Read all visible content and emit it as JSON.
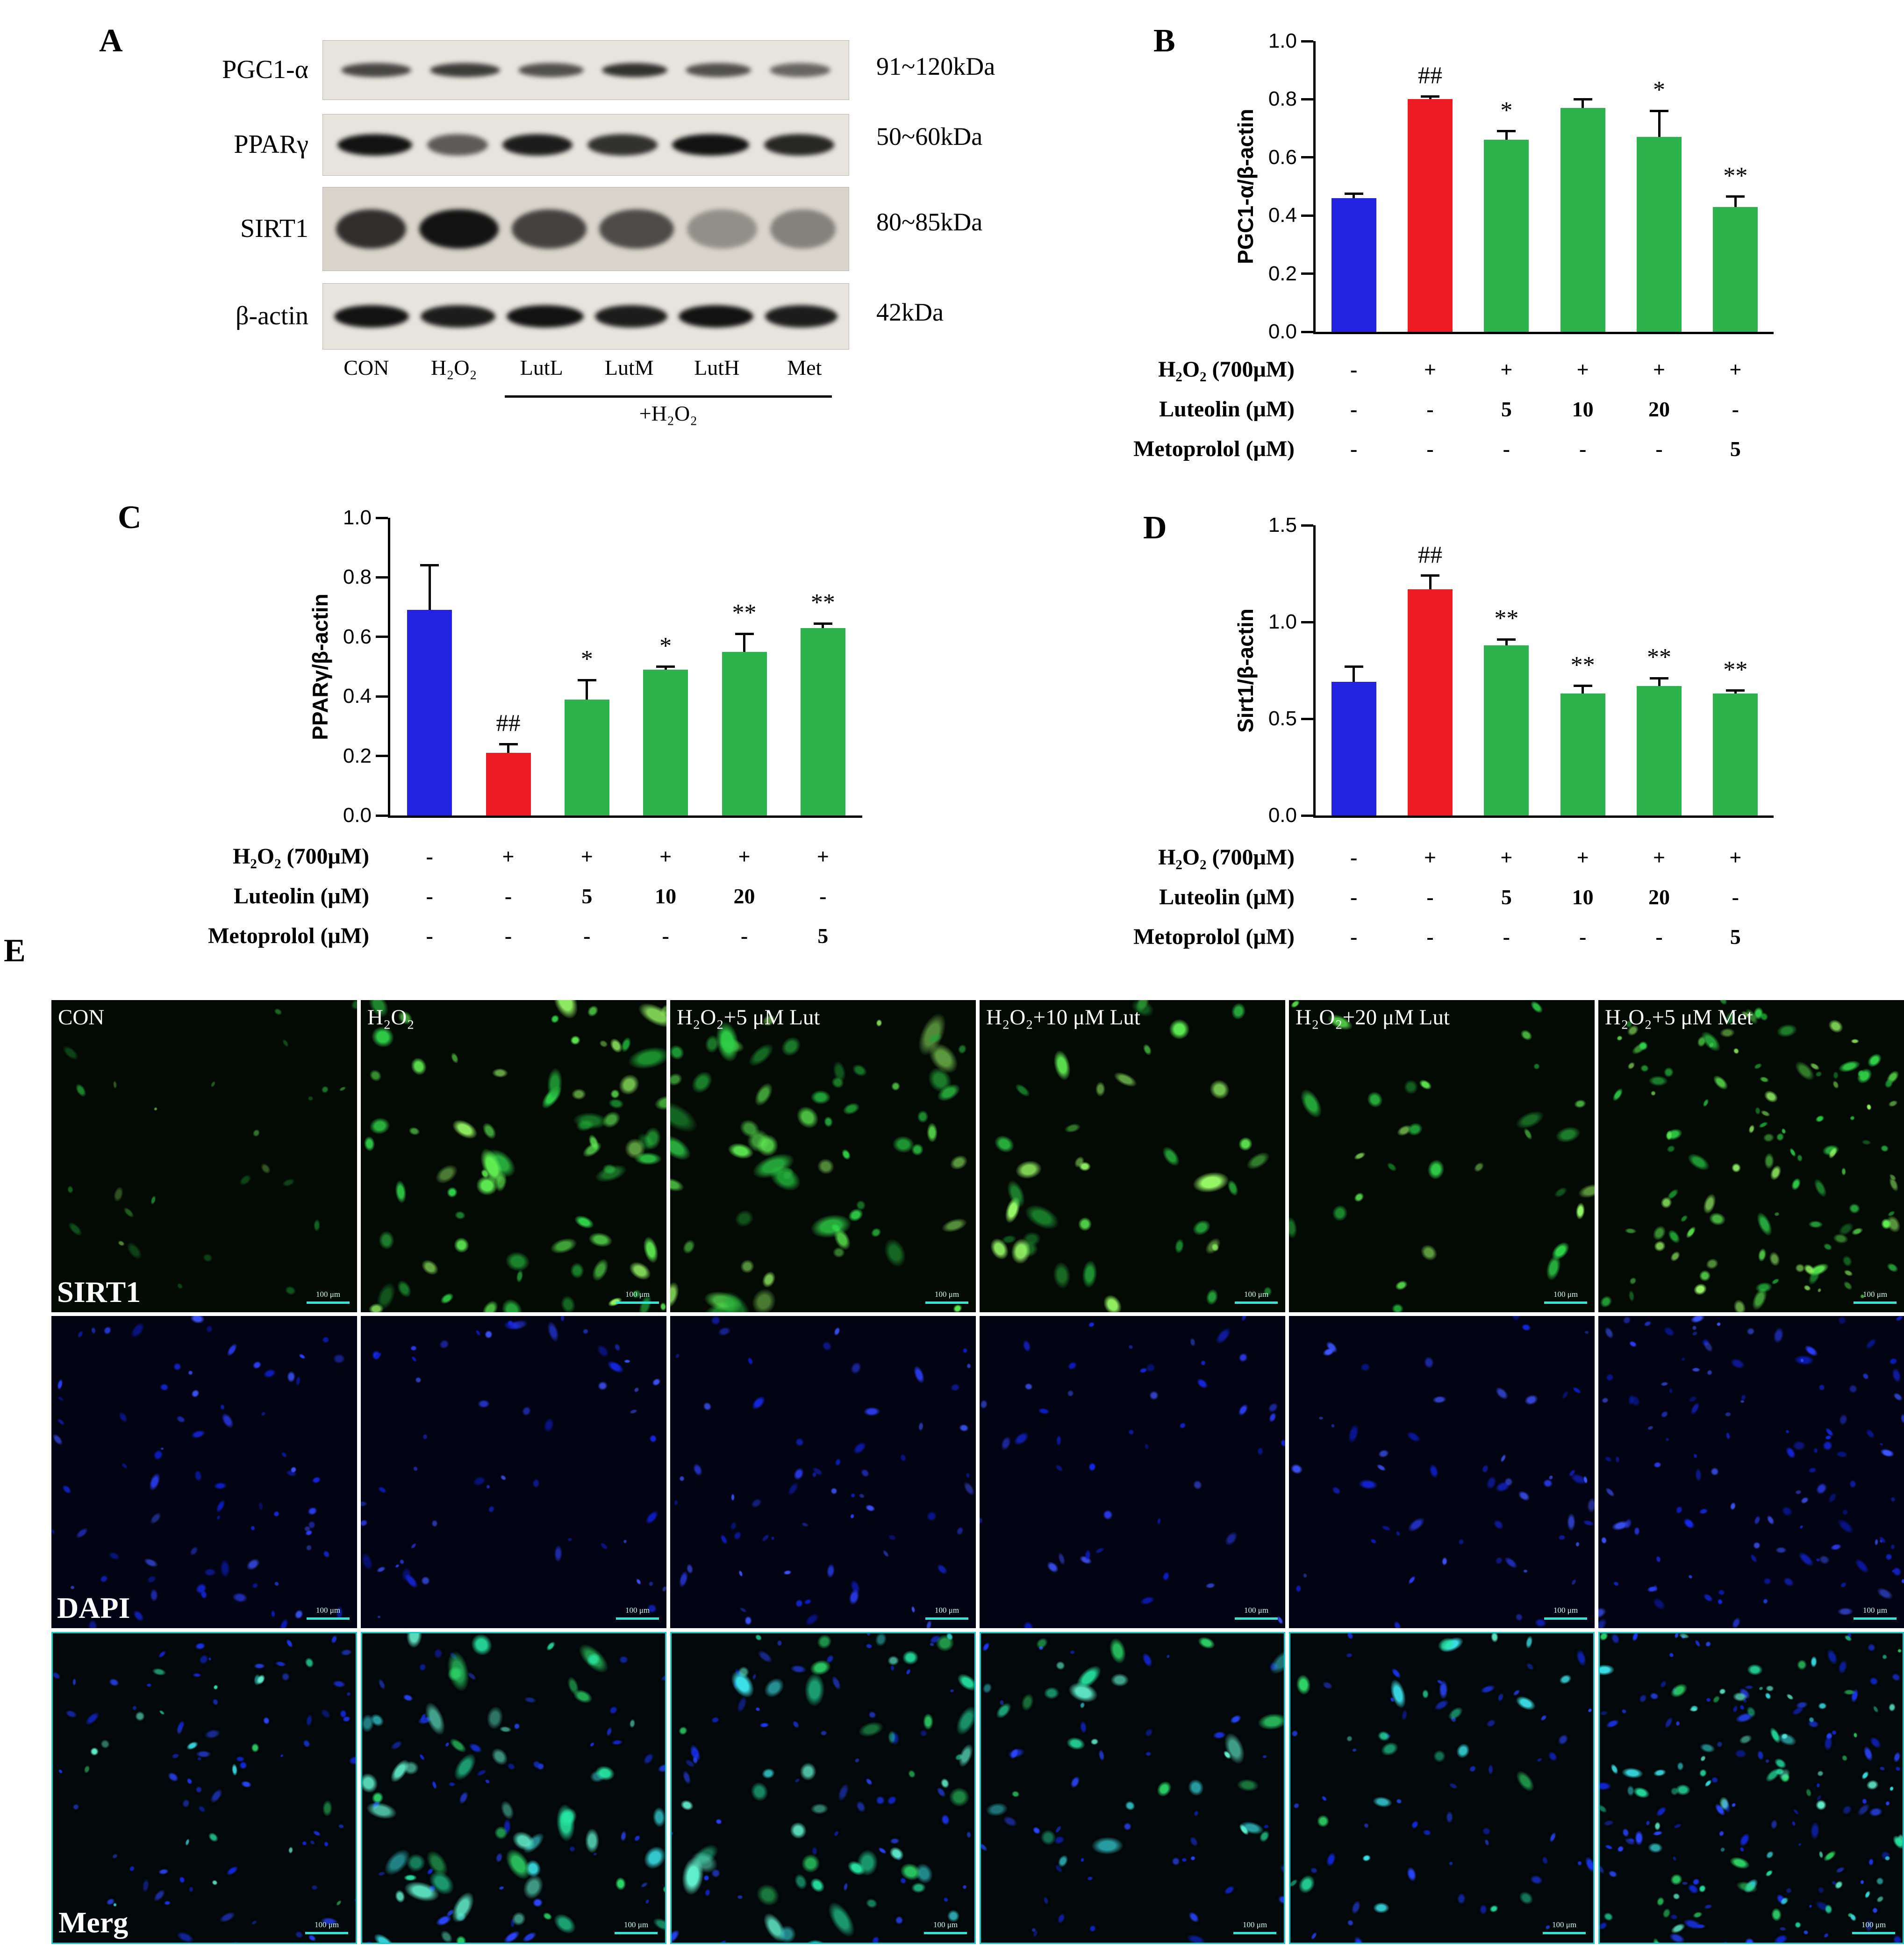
{
  "figure": {
    "panel_labels": {
      "a": "A",
      "b": "B",
      "c": "C",
      "d": "D",
      "e": "E"
    }
  },
  "panel_a": {
    "blots": [
      {
        "protein": "PGC1-α",
        "kda": "91~120kDa"
      },
      {
        "protein": "PPARγ",
        "kda": "50~60kDa"
      },
      {
        "protein": "SIRT1",
        "kda": "80~85kDa"
      },
      {
        "protein": "β-actin",
        "kda": "42kDa"
      }
    ],
    "lanes": [
      "CON",
      "H₂O₂",
      "LutL",
      "LutM",
      "LutH",
      "Met"
    ],
    "bracket_label": "+H₂O₂"
  },
  "treatment_rows": {
    "rows": [
      {
        "label": "H₂O₂ (700μM)",
        "values": [
          "-",
          "+",
          "+",
          "+",
          "+",
          "+"
        ]
      },
      {
        "label": "Luteolin (μM)",
        "values": [
          "-",
          "-",
          "5",
          "10",
          "20",
          "-"
        ]
      },
      {
        "label": "Metoprolol (μM)",
        "values": [
          "-",
          "-",
          "-",
          "-",
          "-",
          "5"
        ]
      }
    ]
  },
  "chart_data": [
    {
      "id": "B",
      "type": "bar",
      "title": "",
      "xlabel": "",
      "ylabel": "PGC1-α/β-actin",
      "ylim": [
        0,
        1.0
      ],
      "ytick_labels": [
        "0.0",
        "0.2",
        "0.4",
        "0.6",
        "0.8",
        "1.0"
      ],
      "categories": [
        "CON",
        "H₂O₂",
        "H₂O₂+5μM Lut",
        "H₂O₂+10μM Lut",
        "H₂O₂+20μM Lut",
        "H₂O₂+5μM Met"
      ],
      "values": [
        0.46,
        0.8,
        0.66,
        0.77,
        0.67,
        0.43
      ],
      "errors": [
        0.015,
        0.01,
        0.03,
        0.03,
        0.09,
        0.035
      ],
      "annotations": [
        "",
        "##",
        "*",
        "",
        "*",
        "**"
      ],
      "bar_colors": [
        "#2222e0",
        "#ed1c24",
        "#2cb34b",
        "#2cb34b",
        "#2cb34b",
        "#2cb34b"
      ],
      "grid": false,
      "legend": false
    },
    {
      "id": "C",
      "type": "bar",
      "title": "",
      "xlabel": "",
      "ylabel": "PPARγ/β-actin",
      "ylim": [
        0,
        1.0
      ],
      "ytick_labels": [
        "0.0",
        "0.2",
        "0.4",
        "0.6",
        "0.8",
        "1.0"
      ],
      "categories": [
        "CON",
        "H₂O₂",
        "H₂O₂+5μM Lut",
        "H₂O₂+10μM Lut",
        "H₂O₂+20μM Lut",
        "H₂O₂+5μM Met"
      ],
      "values": [
        0.69,
        0.21,
        0.39,
        0.49,
        0.55,
        0.63
      ],
      "errors": [
        0.15,
        0.03,
        0.065,
        0.01,
        0.06,
        0.015
      ],
      "annotations": [
        "",
        "##",
        "*",
        "*",
        "**",
        "**"
      ],
      "bar_colors": [
        "#2222e0",
        "#ed1c24",
        "#2cb34b",
        "#2cb34b",
        "#2cb34b",
        "#2cb34b"
      ],
      "grid": false,
      "legend": false
    },
    {
      "id": "D",
      "type": "bar",
      "title": "",
      "xlabel": "",
      "ylabel": "Sirt1/β-actin",
      "ylim": [
        0,
        1.5
      ],
      "ytick_labels": [
        "0.0",
        "0.5",
        "1.0",
        "1.5"
      ],
      "categories": [
        "CON",
        "H₂O₂",
        "H₂O₂+5μM Lut",
        "H₂O₂+10μM Lut",
        "H₂O₂+20μM Lut",
        "H₂O₂+5μM Met"
      ],
      "values": [
        0.69,
        1.17,
        0.88,
        0.63,
        0.67,
        0.63
      ],
      "errors": [
        0.08,
        0.07,
        0.03,
        0.04,
        0.04,
        0.015
      ],
      "annotations": [
        "",
        "##",
        "**",
        "**",
        "**",
        "**"
      ],
      "bar_colors": [
        "#2222e0",
        "#ed1c24",
        "#2cb34b",
        "#2cb34b",
        "#2cb34b",
        "#2cb34b"
      ],
      "grid": false,
      "legend": false
    }
  ],
  "panel_e": {
    "col_titles": [
      "CON",
      "H₂O₂",
      "H₂O₂+5 μM Lut",
      "H₂O₂+10 μM Lut",
      "H₂O₂+20 μM Lut",
      "H₂O₂+5 μM Met"
    ],
    "row_labels": [
      "SIRT1",
      "DAPI",
      "Merg"
    ],
    "scale_bar": "100 μm"
  }
}
